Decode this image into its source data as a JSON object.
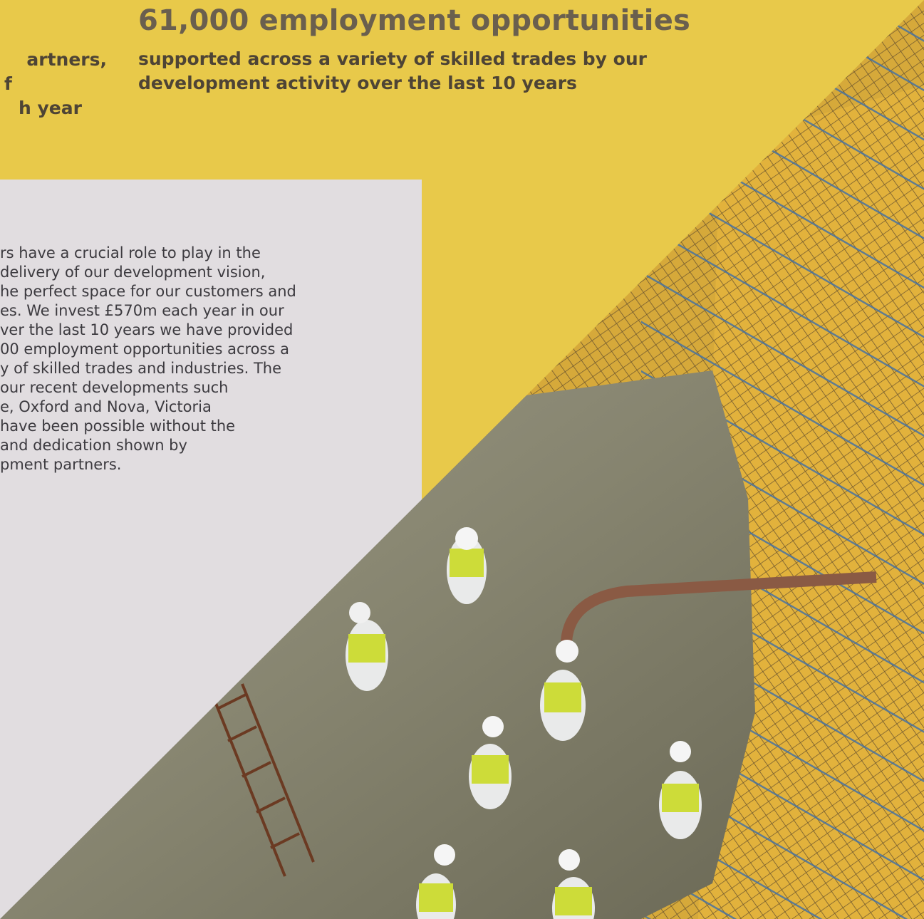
{
  "stat": {
    "headline": "61,000 employment opportunities",
    "subline": "supported across a variety of skilled trades by our development activity over the last 10 years"
  },
  "left_stat": {
    "lines": [
      "artners,",
      "f",
      "h year"
    ]
  },
  "body": {
    "lines": [
      "rs have a crucial role to play in the",
      " delivery of our development vision,",
      "he perfect space for our customers and",
      "es. We invest £570m each year in our",
      "ver the last 10 years we have provided",
      "00 employment opportunities across a",
      "y of skilled trades and industries. The",
      "our recent developments such",
      "e, Oxford and Nova, Victoria",
      "have been possible without the",
      "and dedication shown by",
      "pment partners."
    ]
  },
  "colors": {
    "yellow": "#e8c94a",
    "grey_panel": "#e1dde0",
    "headline": "#6a5f4e"
  }
}
